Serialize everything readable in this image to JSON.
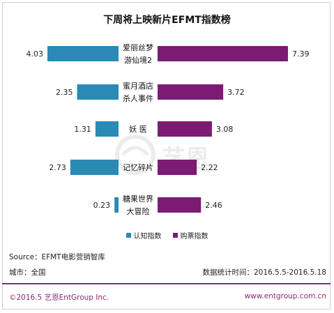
{
  "chart_data": {
    "type": "bar",
    "title": "下周将上映新片EFMT指数榜",
    "categories": [
      [
        "爱丽丝梦",
        "游仙境2"
      ],
      [
        "蜜月酒店",
        "杀人事件"
      ],
      [
        "妖  医"
      ],
      [
        "记忆碎片"
      ],
      [
        "糖果世界",
        "大冒险"
      ]
    ],
    "series": [
      {
        "name": "认知指数",
        "color": "#2a8ab5",
        "values": [
          4.03,
          2.35,
          1.31,
          2.73,
          0.23
        ]
      },
      {
        "name": "购票指数",
        "color": "#7b1b74",
        "values": [
          7.39,
          3.72,
          3.08,
          2.22,
          2.46
        ]
      }
    ],
    "value_labels": {
      "left": [
        "4.03",
        "2.35",
        "1.31",
        "2.73",
        "0.23"
      ],
      "right": [
        "7.39",
        "3.72",
        "3.08",
        "2.22",
        "2.46"
      ]
    },
    "legend_position": "bottom",
    "grid": false
  },
  "source": "Source：EFMT电影营销智库",
  "city": "城市：全国",
  "period": "数据统计时间：2016.5.5-2016.5.18",
  "footer": {
    "copyright": "©2016.5 艺恩EntGroup Inc.",
    "website": "www.entgroup.com.cn"
  },
  "watermark": {
    "text": "艺恩",
    "sub": "ENTGROUP"
  }
}
